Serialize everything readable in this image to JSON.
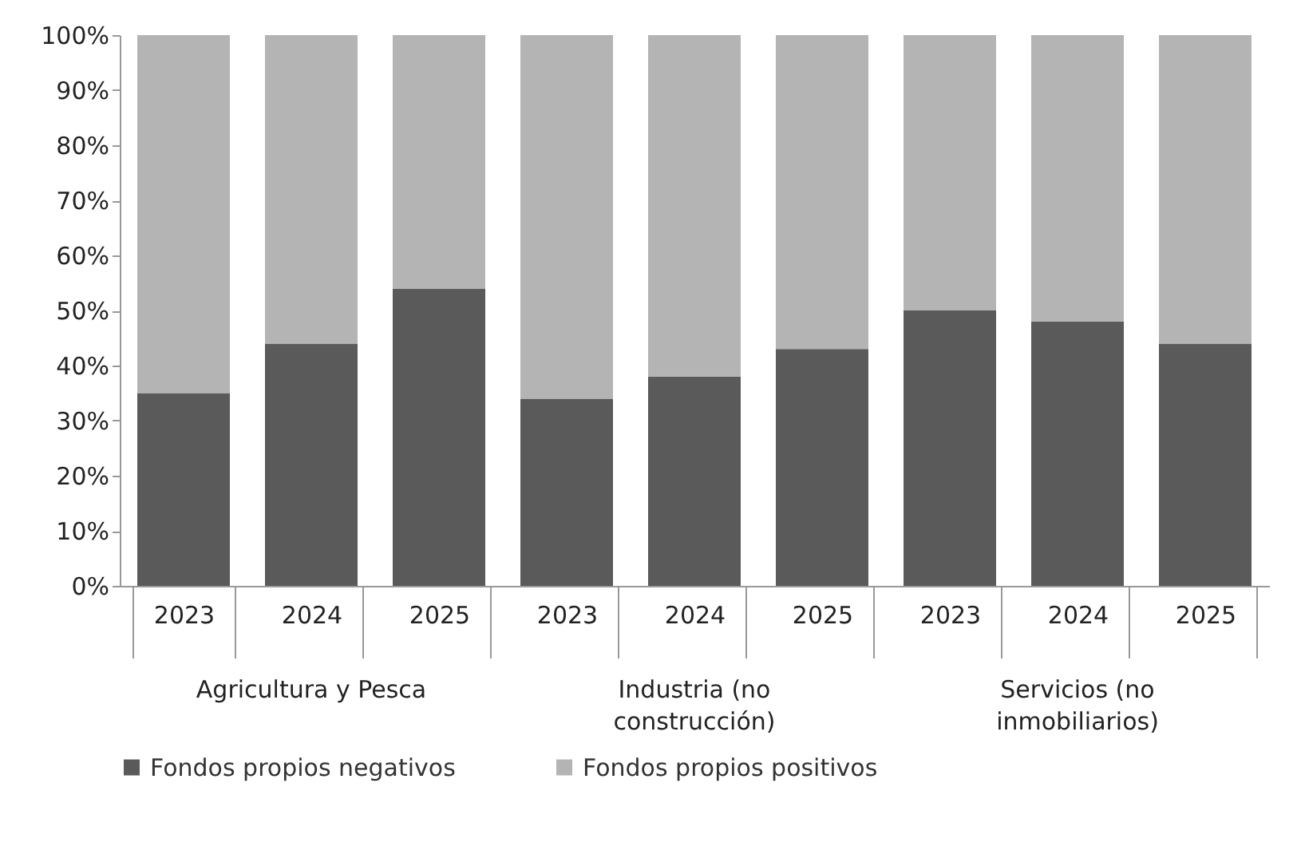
{
  "chart_data": {
    "type": "bar",
    "stacked": true,
    "categories": [
      "2023",
      "2024",
      "2025",
      "2023",
      "2024",
      "2025",
      "2023",
      "2024",
      "2025"
    ],
    "series": [
      {
        "name": "Fondos propios negativos",
        "color": "#5a5a5a",
        "values": [
          35,
          44,
          54,
          34,
          38,
          43,
          50,
          48,
          44
        ]
      },
      {
        "name": "Fondos propios positivos",
        "color": "#b4b4b4",
        "values": [
          65,
          56,
          46,
          66,
          62,
          57,
          50,
          52,
          56
        ]
      }
    ],
    "annotations": [
      "Agricultura y Pesca",
      "Industria (no construcción)",
      "Servicios (no inmobiliarios)"
    ],
    "ylim": [
      0,
      100
    ],
    "yticks": [
      {
        "value": 0,
        "label": "0%"
      },
      {
        "value": 10,
        "label": "10%"
      },
      {
        "value": 20,
        "label": "20%"
      },
      {
        "value": 30,
        "label": "30%"
      },
      {
        "value": 40,
        "label": "40%"
      },
      {
        "value": 50,
        "label": "50%"
      },
      {
        "value": 60,
        "label": "60%"
      },
      {
        "value": 70,
        "label": "70%"
      },
      {
        "value": 80,
        "label": "80%"
      },
      {
        "value": 90,
        "label": "90%"
      },
      {
        "value": 100,
        "label": "100%"
      }
    ],
    "grid": false,
    "legend": "bottom"
  }
}
